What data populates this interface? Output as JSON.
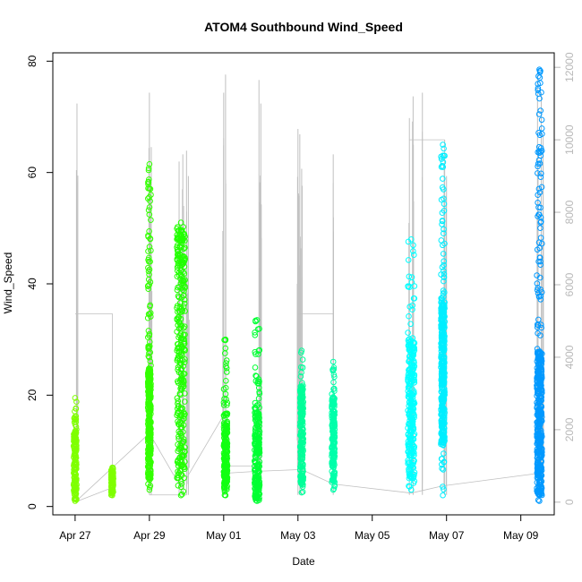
{
  "chart_data": {
    "type": "scatter",
    "title": "ATOM4 Southbound Wind_Speed",
    "xlabel": "Date",
    "ylabel": "Wind_Speed",
    "x_tick_labels": [
      "Apr 27",
      "Apr 29",
      "May 01",
      "May 03",
      "May 05",
      "May 07",
      "May 09"
    ],
    "x_tick_days": [
      0,
      2,
      4,
      6,
      8,
      10,
      12
    ],
    "xlim_days": [
      -0.6,
      12.9
    ],
    "ylim": [
      -1.5,
      81.5
    ],
    "y_ticks": [
      0,
      20,
      40,
      60,
      80
    ],
    "y2lim": [
      -350,
      12400
    ],
    "y2_ticks": [
      0,
      2000,
      4000,
      6000,
      8000,
      10000,
      12000
    ],
    "grid": false,
    "legend": "none",
    "wind_speed_clusters": [
      {
        "day": 0.0,
        "width": 0.08,
        "min": 1,
        "max": 19.5,
        "dense_min": 2,
        "dense_max": 14,
        "color": "#7fff00"
      },
      {
        "day": 1.0,
        "width": 0.06,
        "min": 2,
        "max": 7,
        "dense_min": 2.5,
        "dense_max": 7,
        "color": "#7fff00"
      },
      {
        "day": 2.0,
        "width": 0.08,
        "min": 3,
        "max": 61.5,
        "dense_min": 5,
        "dense_max": 25,
        "color": "#33ff00"
      },
      {
        "day": 2.85,
        "width": 0.22,
        "min": 2,
        "max": 51,
        "dense_min": 5,
        "dense_max": 50,
        "color": "#22ff00"
      },
      {
        "day": 4.05,
        "width": 0.1,
        "min": 2,
        "max": 30,
        "dense_min": 3,
        "dense_max": 15,
        "color": "#11ff11"
      },
      {
        "day": 4.9,
        "width": 0.14,
        "min": 1,
        "max": 33.5,
        "dense_min": 1,
        "dense_max": 18,
        "color": "#00ff33"
      },
      {
        "day": 6.1,
        "width": 0.09,
        "min": 2.5,
        "max": 28,
        "dense_min": 4,
        "dense_max": 22,
        "color": "#00ff99"
      },
      {
        "day": 6.95,
        "width": 0.08,
        "min": 3,
        "max": 26,
        "dense_min": 4,
        "dense_max": 20,
        "color": "#00ffaa"
      },
      {
        "day": 9.05,
        "width": 0.18,
        "min": 3,
        "max": 48,
        "dense_min": 5,
        "dense_max": 30,
        "color": "#00ffff"
      },
      {
        "day": 9.9,
        "width": 0.1,
        "min": 2,
        "max": 65,
        "dense_min": 11,
        "dense_max": 38,
        "color": "#00eeff"
      },
      {
        "day": 12.5,
        "width": 0.14,
        "min": 1,
        "max": 78.5,
        "dense_min": 2,
        "dense_max": 28,
        "color": "#0099ff"
      }
    ],
    "secondary_series": {
      "color": "#c0c0c0",
      "spikes": [
        {
          "day": 0.05,
          "max": 11000
        },
        {
          "day": 2.0,
          "max": 11300
        },
        {
          "day": 2.05,
          "max": 9800
        },
        {
          "day": 2.8,
          "max": 9400
        },
        {
          "day": 2.9,
          "max": 9600
        },
        {
          "day": 3.0,
          "max": 9700
        },
        {
          "day": 3.05,
          "max": 9000
        },
        {
          "day": 4.0,
          "max": 11300
        },
        {
          "day": 4.05,
          "max": 11800
        },
        {
          "day": 4.95,
          "max": 11650
        },
        {
          "day": 5.0,
          "max": 11000
        },
        {
          "day": 6.0,
          "max": 10300
        },
        {
          "day": 6.05,
          "max": 10150
        },
        {
          "day": 6.1,
          "max": 9200
        },
        {
          "day": 6.95,
          "max": 9600
        },
        {
          "day": 9.0,
          "max": 10600
        },
        {
          "day": 9.1,
          "max": 11200
        },
        {
          "day": 9.35,
          "max": 11300
        },
        {
          "day": 9.95,
          "max": 10000
        },
        {
          "day": 10.0,
          "max": 9000
        },
        {
          "day": 12.45,
          "max": 11800
        },
        {
          "day": 12.55,
          "max": 11300
        },
        {
          "day": 12.6,
          "max": 10100
        }
      ],
      "connectors": [
        [
          0.0,
          5200
        ],
        [
          1.0,
          5200
        ],
        [
          1.0,
          400
        ],
        [
          0.0,
          0
        ],
        [
          2.0,
          1900
        ],
        [
          2.85,
          400
        ],
        [
          4.0,
          2400
        ],
        [
          4.05,
          800
        ],
        [
          4.9,
          850
        ],
        [
          6.1,
          900
        ],
        [
          6.95,
          500
        ],
        [
          9.05,
          250
        ],
        [
          9.9,
          450
        ],
        [
          12.5,
          800
        ]
      ],
      "flat_segments": [
        [
          2.0,
          3.0,
          200
        ],
        [
          4.1,
          4.9,
          1000
        ],
        [
          6.0,
          6.95,
          5200
        ],
        [
          9.0,
          9.95,
          10000
        ]
      ]
    }
  }
}
